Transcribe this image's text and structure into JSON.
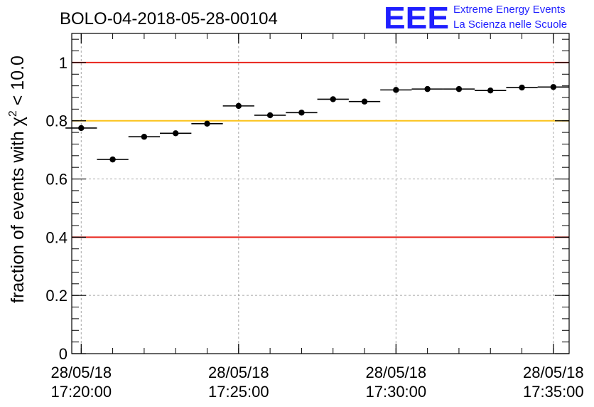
{
  "chart_data": {
    "type": "scatter",
    "title": "BOLO-04-2018-05-28-00104",
    "ylabel": {
      "prefix": "fraction of events with ",
      "symbol": "χ",
      "superscript": "2",
      "suffix": " < 10.0"
    },
    "xlabel": "",
    "ylim": [
      0,
      1.1
    ],
    "yticks": [
      "0",
      "0.2",
      "0.4",
      "0.6",
      "0.8",
      "1"
    ],
    "xlim_minutes": [
      -0.3,
      15.5
    ],
    "xticks": [
      {
        "date": "28/05/18",
        "time": "17:20:00"
      },
      {
        "date": "28/05/18",
        "time": "17:25:00"
      },
      {
        "date": "28/05/18",
        "time": "17:30:00"
      },
      {
        "date": "28/05/18",
        "time": "17:35:00"
      }
    ],
    "grid": true,
    "series": [
      {
        "x_times": [
          "17:20:00",
          "17:21:00",
          "17:22:00",
          "17:23:00",
          "17:24:00",
          "17:25:00",
          "17:26:00",
          "17:27:00",
          "17:28:00",
          "17:29:00",
          "17:30:00",
          "17:31:00",
          "17:32:00",
          "17:33:00",
          "17:34:00",
          "17:35:00"
        ],
        "values": [
          0.775,
          0.667,
          0.745,
          0.757,
          0.79,
          0.851,
          0.819,
          0.828,
          0.874,
          0.866,
          0.906,
          0.909,
          0.909,
          0.904,
          0.914,
          0.916
        ],
        "bin_width_minutes": 1
      }
    ],
    "reference_lines": [
      {
        "y": 1.0,
        "color": "#e8241c"
      },
      {
        "y": 0.8,
        "color": "#fbc21a"
      },
      {
        "y": 0.4,
        "color": "#e8241c"
      }
    ]
  },
  "logo": {
    "letters": "EEE",
    "line1": "Extreme Energy Events",
    "line2": "La Scienza nelle Scuole",
    "color": "#1f1fff"
  }
}
